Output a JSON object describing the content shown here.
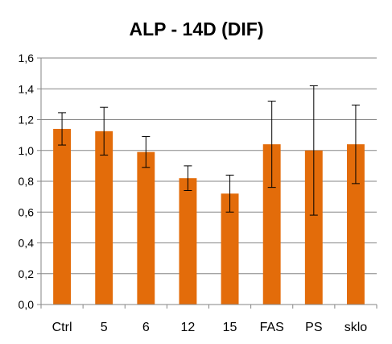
{
  "chart_data": {
    "type": "bar",
    "title": "ALP - 14D (DIF)",
    "xlabel": "",
    "ylabel": "",
    "categories": [
      "Ctrl",
      "5",
      "6",
      "12",
      "15",
      "FAS",
      "PS",
      "sklo"
    ],
    "values": [
      1.14,
      1.125,
      0.99,
      0.82,
      0.72,
      1.04,
      1.0,
      1.04
    ],
    "error_bars": [
      0.105,
      0.155,
      0.1,
      0.08,
      0.12,
      0.28,
      0.42,
      0.255
    ],
    "ylim": [
      0,
      1.6
    ],
    "yticks": [
      0.0,
      0.2,
      0.4,
      0.6,
      0.8,
      1.0,
      1.2,
      1.4,
      1.6
    ],
    "ytick_labels": [
      "0,0",
      "0,2",
      "0,4",
      "0,6",
      "0,8",
      "1,0",
      "1,2",
      "1,4",
      "1,6"
    ],
    "grid": true,
    "legend": "none",
    "colors": {
      "bar": "#E36C0A",
      "grid": "#868686",
      "axis": "#868686",
      "error": "#000000"
    }
  }
}
